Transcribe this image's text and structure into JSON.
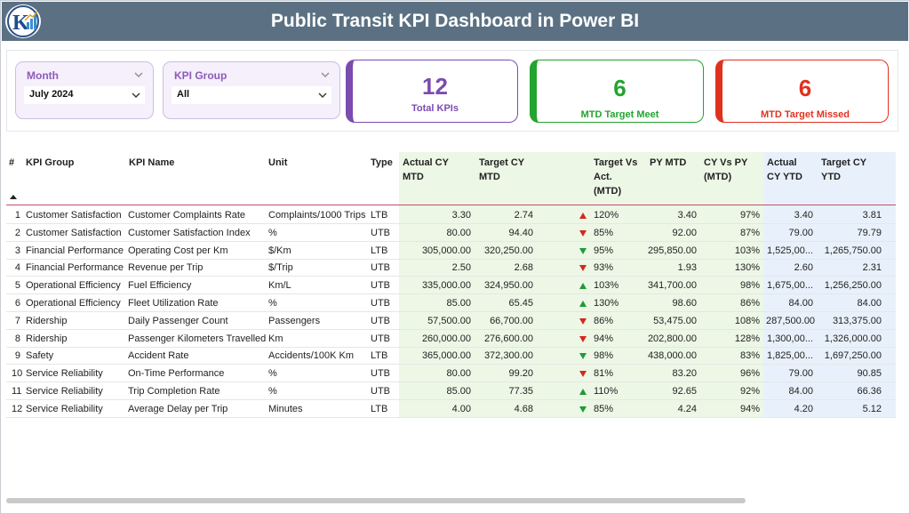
{
  "header": {
    "title": "Public Transit KPI Dashboard in Power BI"
  },
  "filters": {
    "month": {
      "label": "Month",
      "value": "July 2024"
    },
    "kpi_group": {
      "label": "KPI Group",
      "value": "All"
    }
  },
  "cards": {
    "total": {
      "value": "12",
      "label": "Total KPIs",
      "color": "#7b4bb0"
    },
    "met": {
      "value": "6",
      "label": "MTD Target Meet",
      "color": "#22a42e"
    },
    "missed": {
      "value": "6",
      "label": "MTD Target Missed",
      "color": "#e0311f"
    }
  },
  "table": {
    "headers": {
      "num": "#",
      "group": "KPI Group",
      "name": "KPI Name",
      "unit": "Unit",
      "type": "Type",
      "actual_mtd_1": "Actual CY",
      "actual_mtd_2": "MTD",
      "target_mtd_1": "Target CY",
      "target_mtd_2": "MTD",
      "tva_1": "Target Vs",
      "tva_2": "Act.",
      "tva_3": "(MTD)",
      "py_mtd": "PY MTD",
      "cvp_1": "CY Vs PY",
      "cvp_2": "(MTD)",
      "actual_ytd_1": "Actual",
      "actual_ytd_2": "CY YTD",
      "target_ytd_1": "Target CY",
      "target_ytd_2": "YTD"
    },
    "rows": [
      {
        "num": "1",
        "group": "Customer Satisfaction",
        "name": "Customer Complaints Rate",
        "unit": "Complaints/1000 Trips",
        "type": "LTB",
        "actual_mtd": "3.30",
        "target_mtd": "2.74",
        "dir": "up",
        "dir_color": "red",
        "tva": "120%",
        "py_mtd": "3.40",
        "cvp": "97%",
        "actual_ytd": "3.40",
        "target_ytd": "3.81"
      },
      {
        "num": "2",
        "group": "Customer Satisfaction",
        "name": "Customer Satisfaction Index",
        "unit": "%",
        "type": "UTB",
        "actual_mtd": "80.00",
        "target_mtd": "94.40",
        "dir": "down",
        "dir_color": "red",
        "tva": "85%",
        "py_mtd": "92.00",
        "cvp": "87%",
        "actual_ytd": "79.00",
        "target_ytd": "79.79"
      },
      {
        "num": "3",
        "group": "Financial Performance",
        "name": "Operating Cost per Km",
        "unit": "$/Km",
        "type": "LTB",
        "actual_mtd": "305,000.00",
        "target_mtd": "320,250.00",
        "dir": "down",
        "dir_color": "green",
        "tva": "95%",
        "py_mtd": "295,850.00",
        "cvp": "103%",
        "actual_ytd": "1,525,00...",
        "target_ytd": "1,265,750.00"
      },
      {
        "num": "4",
        "group": "Financial Performance",
        "name": "Revenue per Trip",
        "unit": "$/Trip",
        "type": "UTB",
        "actual_mtd": "2.50",
        "target_mtd": "2.68",
        "dir": "down",
        "dir_color": "red",
        "tva": "93%",
        "py_mtd": "1.93",
        "cvp": "130%",
        "actual_ytd": "2.60",
        "target_ytd": "2.31"
      },
      {
        "num": "5",
        "group": "Operational Efficiency",
        "name": "Fuel Efficiency",
        "unit": "Km/L",
        "type": "UTB",
        "actual_mtd": "335,000.00",
        "target_mtd": "324,950.00",
        "dir": "up",
        "dir_color": "green",
        "tva": "103%",
        "py_mtd": "341,700.00",
        "cvp": "98%",
        "actual_ytd": "1,675,00...",
        "target_ytd": "1,256,250.00"
      },
      {
        "num": "6",
        "group": "Operational Efficiency",
        "name": "Fleet Utilization Rate",
        "unit": "%",
        "type": "UTB",
        "actual_mtd": "85.00",
        "target_mtd": "65.45",
        "dir": "up",
        "dir_color": "green",
        "tva": "130%",
        "py_mtd": "98.60",
        "cvp": "86%",
        "actual_ytd": "84.00",
        "target_ytd": "84.00"
      },
      {
        "num": "7",
        "group": "Ridership",
        "name": "Daily Passenger Count",
        "unit": "Passengers",
        "type": "UTB",
        "actual_mtd": "57,500.00",
        "target_mtd": "66,700.00",
        "dir": "down",
        "dir_color": "red",
        "tva": "86%",
        "py_mtd": "53,475.00",
        "cvp": "108%",
        "actual_ytd": "287,500.00",
        "target_ytd": "313,375.00"
      },
      {
        "num": "8",
        "group": "Ridership",
        "name": "Passenger Kilometers Travelled",
        "unit": "Km",
        "type": "UTB",
        "actual_mtd": "260,000.00",
        "target_mtd": "276,600.00",
        "dir": "down",
        "dir_color": "red",
        "tva": "94%",
        "py_mtd": "202,800.00",
        "cvp": "128%",
        "actual_ytd": "1,300,00...",
        "target_ytd": "1,326,000.00"
      },
      {
        "num": "9",
        "group": "Safety",
        "name": "Accident Rate",
        "unit": "Accidents/100K Km",
        "type": "LTB",
        "actual_mtd": "365,000.00",
        "target_mtd": "372,300.00",
        "dir": "down",
        "dir_color": "green",
        "tva": "98%",
        "py_mtd": "438,000.00",
        "cvp": "83%",
        "actual_ytd": "1,825,00...",
        "target_ytd": "1,697,250.00"
      },
      {
        "num": "10",
        "group": "Service Reliability",
        "name": "On-Time Performance",
        "unit": "%",
        "type": "UTB",
        "actual_mtd": "80.00",
        "target_mtd": "99.20",
        "dir": "down",
        "dir_color": "red",
        "tva": "81%",
        "py_mtd": "83.20",
        "cvp": "96%",
        "actual_ytd": "79.00",
        "target_ytd": "90.85"
      },
      {
        "num": "11",
        "group": "Service Reliability",
        "name": "Trip Completion Rate",
        "unit": "%",
        "type": "UTB",
        "actual_mtd": "85.00",
        "target_mtd": "77.35",
        "dir": "up",
        "dir_color": "green",
        "tva": "110%",
        "py_mtd": "92.65",
        "cvp": "92%",
        "actual_ytd": "84.00",
        "target_ytd": "66.36"
      },
      {
        "num": "12",
        "group": "Service Reliability",
        "name": "Average Delay per Trip",
        "unit": "Minutes",
        "type": "LTB",
        "actual_mtd": "4.00",
        "target_mtd": "4.68",
        "dir": "down",
        "dir_color": "green",
        "tva": "85%",
        "py_mtd": "4.24",
        "cvp": "94%",
        "actual_ytd": "4.20",
        "target_ytd": "5.12"
      }
    ]
  },
  "icons": {
    "logo": "company-logo",
    "dropdown": "chevron-down-icon",
    "status_up": "triangle-up-icon",
    "status_down": "triangle-down-icon",
    "sort": "sort-indicator-icon"
  },
  "colors": {
    "header_bg": "#5b7183",
    "slicer_bg": "#f5f0fb",
    "slicer_label": "#8d5bb8",
    "green_cols": "#edf7e6",
    "blue_cols": "#e8f1fb",
    "up_green": "#1e9a3a",
    "down_red": "#d7261e"
  }
}
